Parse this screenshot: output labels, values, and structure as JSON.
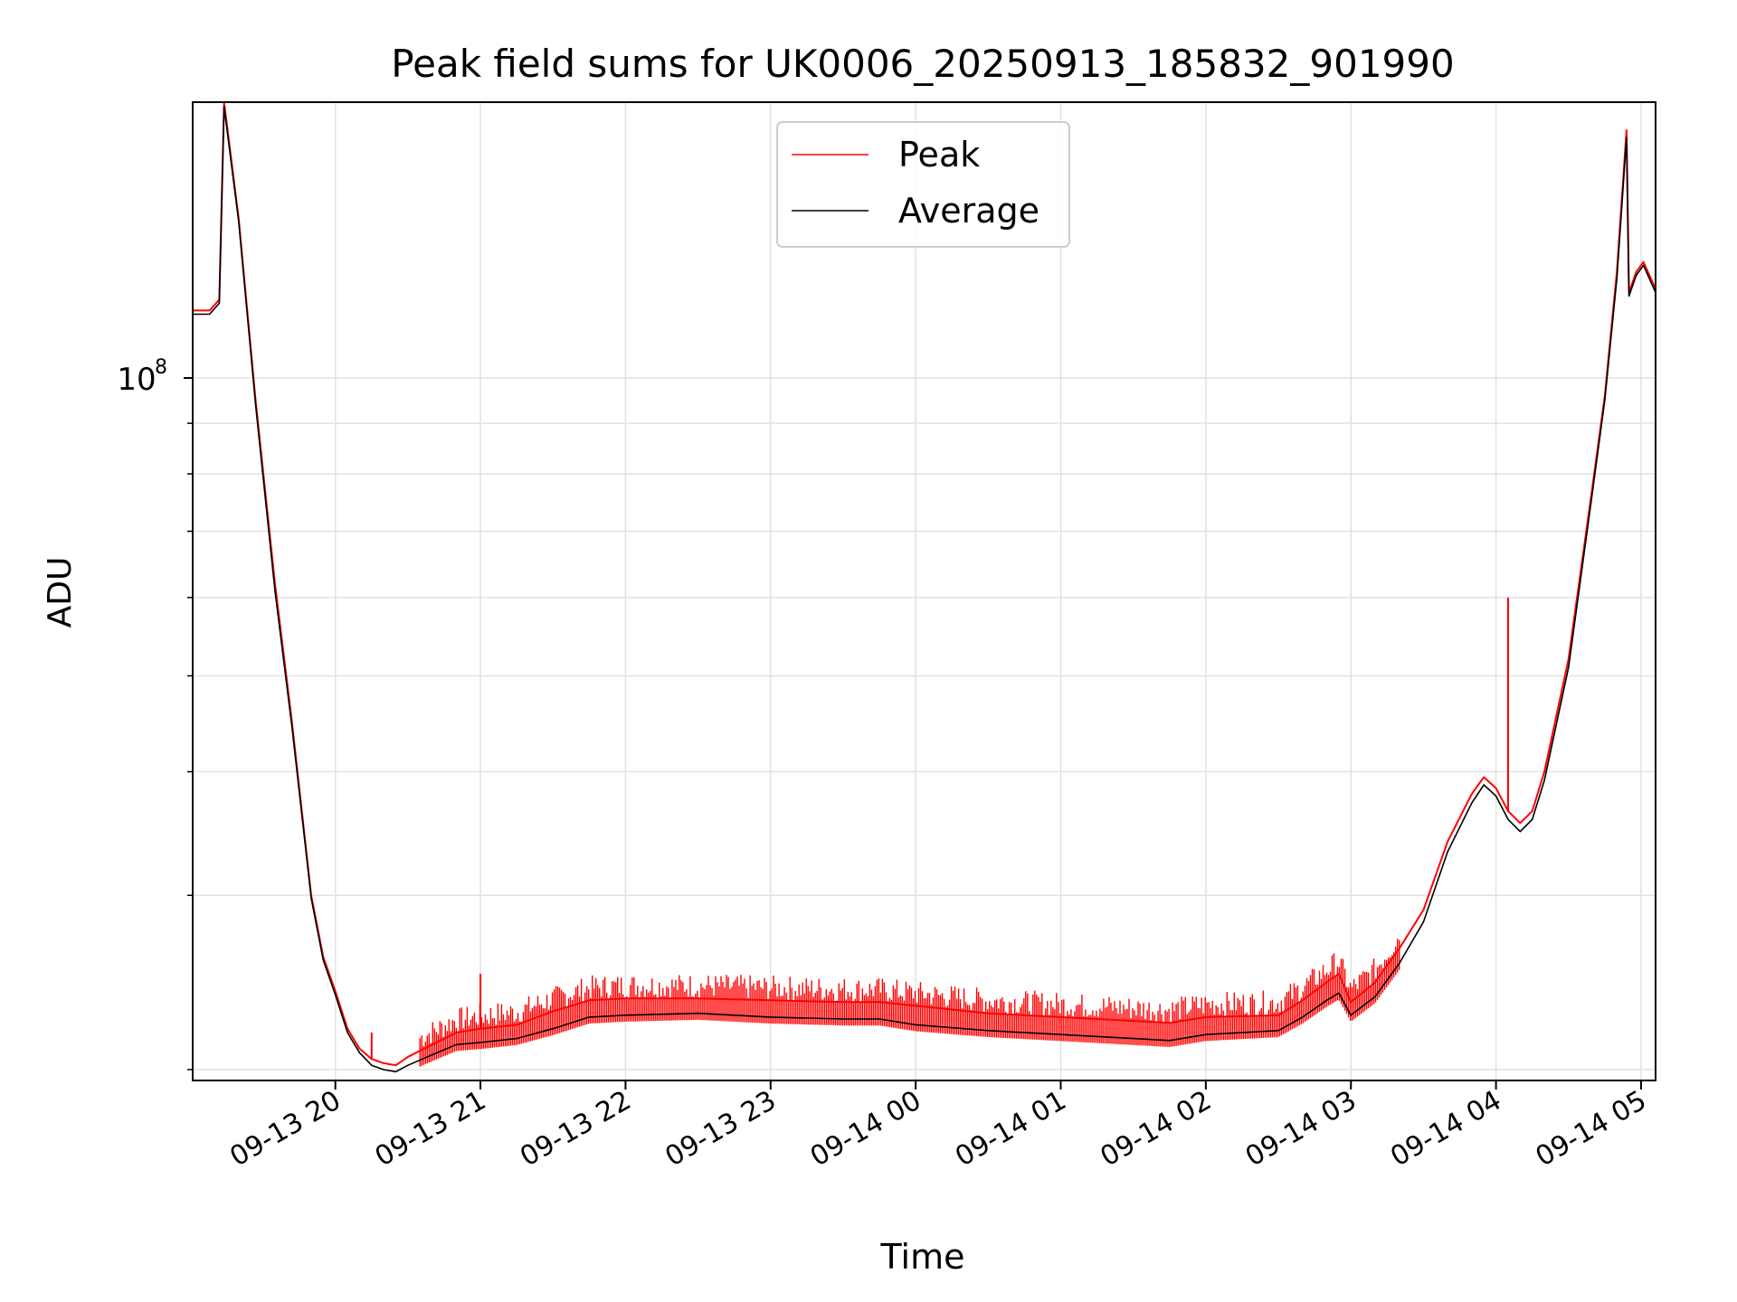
{
  "chart_data": {
    "type": "line",
    "title": "Peak field sums for UK0006_20250913_185832_901990",
    "xlabel": "Time",
    "ylabel": "ADU",
    "y_scale": "log",
    "ylim": [
      19500000,
      190000000
    ],
    "xlim": [
      "2025-09-13T19:01",
      "2025-09-14T05:06"
    ],
    "x_ticks": [
      "09-13 20",
      "09-13 21",
      "09-13 22",
      "09-13 23",
      "09-14 00",
      "09-14 01",
      "09-14 02",
      "09-14 03",
      "09-14 04",
      "09-14 05"
    ],
    "x_tick_times": [
      "2025-09-13T20:00",
      "2025-09-13T21:00",
      "2025-09-13T22:00",
      "2025-09-13T23:00",
      "2025-09-14T00:00",
      "2025-09-14T01:00",
      "2025-09-14T02:00",
      "2025-09-14T03:00",
      "2025-09-14T04:00",
      "2025-09-14T05:00"
    ],
    "y_tick_label": "10",
    "y_tick_label_exp": "8",
    "y_tick_value": 100000000,
    "y_minor_ticks": [
      20000000,
      30000000,
      40000000,
      50000000,
      60000000,
      70000000,
      80000000,
      90000000
    ],
    "grid": true,
    "legend_position": "top-center",
    "series": [
      {
        "name": "Peak",
        "color": "#ff0000",
        "points": [
          [
            "2025-09-13T19:01",
            117000000
          ],
          [
            "2025-09-13T19:08",
            117000000
          ],
          [
            "2025-09-13T19:12",
            120000000
          ],
          [
            "2025-09-13T19:14",
            190000000
          ],
          [
            "2025-09-13T19:20",
            145000000
          ],
          [
            "2025-09-13T19:27",
            95000000
          ],
          [
            "2025-09-13T19:35",
            62000000
          ],
          [
            "2025-09-13T19:42",
            45000000
          ],
          [
            "2025-09-13T19:50",
            30000000
          ],
          [
            "2025-09-13T19:55",
            26000000
          ],
          [
            "2025-09-13T20:00",
            24000000
          ],
          [
            "2025-09-13T20:05",
            22000000
          ],
          [
            "2025-09-13T20:10",
            21000000
          ],
          [
            "2025-09-13T20:15",
            20500000
          ],
          [
            "2025-09-13T20:20",
            20300000
          ],
          [
            "2025-09-13T20:25",
            20200000
          ],
          [
            "2025-09-13T20:30",
            20600000
          ],
          [
            "2025-09-13T20:40",
            21200000
          ],
          [
            "2025-09-13T20:50",
            21800000
          ],
          [
            "2025-09-13T21:00",
            22000000
          ],
          [
            "2025-09-13T21:15",
            22200000
          ],
          [
            "2025-09-13T21:30",
            22900000
          ],
          [
            "2025-09-13T21:45",
            23500000
          ],
          [
            "2025-09-13T22:00",
            23600000
          ],
          [
            "2025-09-13T22:30",
            23600000
          ],
          [
            "2025-09-13T23:00",
            23500000
          ],
          [
            "2025-09-13T23:30",
            23400000
          ],
          [
            "2025-09-13T23:45",
            23400000
          ],
          [
            "2025-09-14T00:00",
            23200000
          ],
          [
            "2025-09-14T00:30",
            22800000
          ],
          [
            "2025-09-14T01:00",
            22600000
          ],
          [
            "2025-09-14T01:30",
            22400000
          ],
          [
            "2025-09-14T01:45",
            22300000
          ],
          [
            "2025-09-14T02:00",
            22600000
          ],
          [
            "2025-09-14T02:30",
            22700000
          ],
          [
            "2025-09-14T02:40",
            23500000
          ],
          [
            "2025-09-14T02:50",
            24500000
          ],
          [
            "2025-09-14T02:55",
            25000000
          ],
          [
            "2025-09-14T03:00",
            23400000
          ],
          [
            "2025-09-14T03:10",
            24500000
          ],
          [
            "2025-09-14T03:20",
            26500000
          ],
          [
            "2025-09-14T03:30",
            29000000
          ],
          [
            "2025-09-14T03:40",
            34000000
          ],
          [
            "2025-09-14T03:50",
            38000000
          ],
          [
            "2025-09-14T03:55",
            39500000
          ],
          [
            "2025-09-14T04:00",
            38500000
          ],
          [
            "2025-09-14T04:05",
            36500000
          ],
          [
            "2025-09-14T04:10",
            35500000
          ],
          [
            "2025-09-14T04:15",
            36500000
          ],
          [
            "2025-09-14T04:20",
            40000000
          ],
          [
            "2025-09-14T04:30",
            52000000
          ],
          [
            "2025-09-14T04:40",
            78000000
          ],
          [
            "2025-09-14T04:45",
            96000000
          ],
          [
            "2025-09-14T04:50",
            128000000
          ],
          [
            "2025-09-14T04:54",
            178000000
          ],
          [
            "2025-09-14T04:55",
            122000000
          ],
          [
            "2025-09-14T04:58",
            128000000
          ],
          [
            "2025-09-14T05:01",
            131000000
          ],
          [
            "2025-09-14T05:06",
            123000000
          ]
        ]
      },
      {
        "name": "Average",
        "color": "#000000",
        "points": [
          [
            "2025-09-13T19:01",
            116000000
          ],
          [
            "2025-09-13T19:08",
            116000000
          ],
          [
            "2025-09-13T19:12",
            119000000
          ],
          [
            "2025-09-13T19:14",
            188000000
          ],
          [
            "2025-09-13T19:20",
            144000000
          ],
          [
            "2025-09-13T19:27",
            94000000
          ],
          [
            "2025-09-13T19:35",
            61000000
          ],
          [
            "2025-09-13T19:42",
            44500000
          ],
          [
            "2025-09-13T19:50",
            29800000
          ],
          [
            "2025-09-13T19:55",
            25800000
          ],
          [
            "2025-09-13T20:00",
            23800000
          ],
          [
            "2025-09-13T20:05",
            21800000
          ],
          [
            "2025-09-13T20:10",
            20800000
          ],
          [
            "2025-09-13T20:15",
            20200000
          ],
          [
            "2025-09-13T20:20",
            20000000
          ],
          [
            "2025-09-13T20:25",
            19900000
          ],
          [
            "2025-09-13T20:30",
            20200000
          ],
          [
            "2025-09-13T20:40",
            20700000
          ],
          [
            "2025-09-13T20:50",
            21200000
          ],
          [
            "2025-09-13T21:00",
            21300000
          ],
          [
            "2025-09-13T21:15",
            21500000
          ],
          [
            "2025-09-13T21:30",
            22000000
          ],
          [
            "2025-09-13T21:45",
            22600000
          ],
          [
            "2025-09-13T22:00",
            22700000
          ],
          [
            "2025-09-13T22:30",
            22800000
          ],
          [
            "2025-09-13T23:00",
            22600000
          ],
          [
            "2025-09-13T23:30",
            22500000
          ],
          [
            "2025-09-13T23:45",
            22500000
          ],
          [
            "2025-09-14T00:00",
            22200000
          ],
          [
            "2025-09-14T00:30",
            21900000
          ],
          [
            "2025-09-14T01:00",
            21700000
          ],
          [
            "2025-09-14T01:30",
            21500000
          ],
          [
            "2025-09-14T01:45",
            21400000
          ],
          [
            "2025-09-14T02:00",
            21700000
          ],
          [
            "2025-09-14T02:30",
            21900000
          ],
          [
            "2025-09-14T02:40",
            22600000
          ],
          [
            "2025-09-14T02:50",
            23500000
          ],
          [
            "2025-09-14T02:55",
            23900000
          ],
          [
            "2025-09-14T03:00",
            22700000
          ],
          [
            "2025-09-14T03:10",
            23700000
          ],
          [
            "2025-09-14T03:20",
            25600000
          ],
          [
            "2025-09-14T03:30",
            28200000
          ],
          [
            "2025-09-14T03:40",
            33200000
          ],
          [
            "2025-09-14T03:50",
            37200000
          ],
          [
            "2025-09-14T03:55",
            38800000
          ],
          [
            "2025-09-14T04:00",
            37800000
          ],
          [
            "2025-09-14T04:05",
            35800000
          ],
          [
            "2025-09-14T04:10",
            34800000
          ],
          [
            "2025-09-14T04:15",
            35800000
          ],
          [
            "2025-09-14T04:20",
            39200000
          ],
          [
            "2025-09-14T04:30",
            51000000
          ],
          [
            "2025-09-14T04:40",
            77000000
          ],
          [
            "2025-09-14T04:45",
            95000000
          ],
          [
            "2025-09-14T04:50",
            126000000
          ],
          [
            "2025-09-14T04:54",
            175000000
          ],
          [
            "2025-09-14T04:55",
            121000000
          ],
          [
            "2025-09-14T04:58",
            127000000
          ],
          [
            "2025-09-14T05:01",
            130000000
          ],
          [
            "2025-09-14T05:06",
            122000000
          ]
        ]
      }
    ],
    "peak_spikes": [
      [
        "2025-09-13T20:15",
        21800000
      ],
      [
        "2025-09-13T21:00",
        25000000
      ],
      [
        "2025-09-14T04:05",
        60000000
      ]
    ]
  }
}
